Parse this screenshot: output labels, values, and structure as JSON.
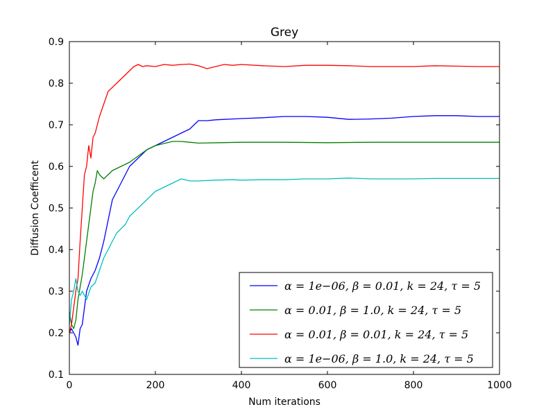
{
  "chart_data": {
    "type": "line",
    "title": "Grey",
    "xlabel": "Num iterations",
    "ylabel": "Diffusion Coefficent",
    "xlim": [
      0,
      1000
    ],
    "ylim": [
      0.1,
      0.9
    ],
    "xticks": [
      "0",
      "200",
      "400",
      "600",
      "800",
      "1000"
    ],
    "yticks": [
      "0.1",
      "0.2",
      "0.3",
      "0.4",
      "0.5",
      "0.6",
      "0.7",
      "0.8",
      "0.9"
    ],
    "grid": false,
    "legend_position": "lower-right",
    "series": [
      {
        "name": "α = 1e−06, β = 0.01, k = 24, τ = 5",
        "color": "#0000ff",
        "x": [
          0,
          5,
          10,
          15,
          20,
          25,
          30,
          40,
          50,
          60,
          70,
          80,
          90,
          100,
          110,
          120,
          130,
          140,
          150,
          160,
          170,
          180,
          190,
          200,
          220,
          240,
          260,
          280,
          300,
          320,
          340,
          360,
          380,
          400,
          450,
          500,
          550,
          600,
          650,
          700,
          750,
          800,
          850,
          900,
          950,
          1000
        ],
        "y": [
          0.2,
          0.21,
          0.2,
          0.19,
          0.17,
          0.21,
          0.22,
          0.3,
          0.33,
          0.35,
          0.38,
          0.42,
          0.47,
          0.52,
          0.54,
          0.56,
          0.58,
          0.6,
          0.61,
          0.62,
          0.63,
          0.64,
          0.645,
          0.65,
          0.66,
          0.67,
          0.68,
          0.69,
          0.71,
          0.71,
          0.712,
          0.713,
          0.714,
          0.715,
          0.717,
          0.72,
          0.72,
          0.718,
          0.713,
          0.714,
          0.716,
          0.72,
          0.722,
          0.722,
          0.72,
          0.72
        ]
      },
      {
        "name": "α = 0.01, β = 1.0, k = 24, τ = 5",
        "color": "#008000",
        "x": [
          0,
          5,
          10,
          15,
          20,
          25,
          30,
          35,
          40,
          45,
          50,
          55,
          60,
          65,
          70,
          80,
          90,
          100,
          120,
          140,
          160,
          180,
          200,
          220,
          240,
          260,
          280,
          300,
          350,
          400,
          500,
          600,
          700,
          800,
          900,
          1000
        ],
        "y": [
          0.25,
          0.22,
          0.21,
          0.23,
          0.28,
          0.31,
          0.34,
          0.38,
          0.42,
          0.46,
          0.5,
          0.54,
          0.56,
          0.59,
          0.58,
          0.57,
          0.58,
          0.59,
          0.6,
          0.61,
          0.625,
          0.64,
          0.65,
          0.655,
          0.66,
          0.66,
          0.658,
          0.656,
          0.657,
          0.658,
          0.658,
          0.657,
          0.658,
          0.658,
          0.658,
          0.658
        ]
      },
      {
        "name": "α = 0.01, β = 0.01, k = 24, τ = 5",
        "color": "#ff0000",
        "x": [
          0,
          5,
          10,
          15,
          20,
          25,
          30,
          35,
          40,
          45,
          50,
          55,
          60,
          70,
          80,
          90,
          100,
          110,
          120,
          130,
          140,
          150,
          160,
          170,
          180,
          200,
          220,
          240,
          260,
          280,
          300,
          320,
          340,
          360,
          380,
          400,
          450,
          500,
          550,
          600,
          650,
          700,
          750,
          800,
          850,
          900,
          950,
          1000
        ],
        "y": [
          0.2,
          0.22,
          0.26,
          0.3,
          0.33,
          0.42,
          0.5,
          0.58,
          0.6,
          0.65,
          0.62,
          0.67,
          0.68,
          0.72,
          0.75,
          0.78,
          0.79,
          0.8,
          0.81,
          0.82,
          0.83,
          0.84,
          0.845,
          0.84,
          0.842,
          0.84,
          0.845,
          0.843,
          0.845,
          0.846,
          0.842,
          0.835,
          0.84,
          0.845,
          0.843,
          0.845,
          0.842,
          0.84,
          0.843,
          0.843,
          0.842,
          0.84,
          0.84,
          0.84,
          0.842,
          0.841,
          0.84,
          0.84
        ]
      },
      {
        "name": "α = 1e−06, β = 1.0, k = 24, τ = 5",
        "color": "#00bfbf",
        "x": [
          0,
          5,
          10,
          15,
          20,
          25,
          30,
          40,
          50,
          60,
          70,
          80,
          90,
          100,
          110,
          120,
          130,
          140,
          150,
          160,
          170,
          180,
          190,
          200,
          220,
          240,
          260,
          280,
          300,
          340,
          380,
          400,
          450,
          500,
          550,
          600,
          650,
          700,
          750,
          800,
          850,
          900,
          950,
          1000
        ],
        "y": [
          0.22,
          0.28,
          0.3,
          0.33,
          0.3,
          0.29,
          0.3,
          0.28,
          0.31,
          0.32,
          0.35,
          0.38,
          0.4,
          0.42,
          0.44,
          0.45,
          0.46,
          0.48,
          0.49,
          0.5,
          0.51,
          0.52,
          0.53,
          0.54,
          0.55,
          0.56,
          0.57,
          0.565,
          0.565,
          0.567,
          0.568,
          0.567,
          0.568,
          0.568,
          0.57,
          0.57,
          0.572,
          0.57,
          0.57,
          0.57,
          0.571,
          0.571,
          0.571,
          0.571
        ]
      }
    ]
  }
}
